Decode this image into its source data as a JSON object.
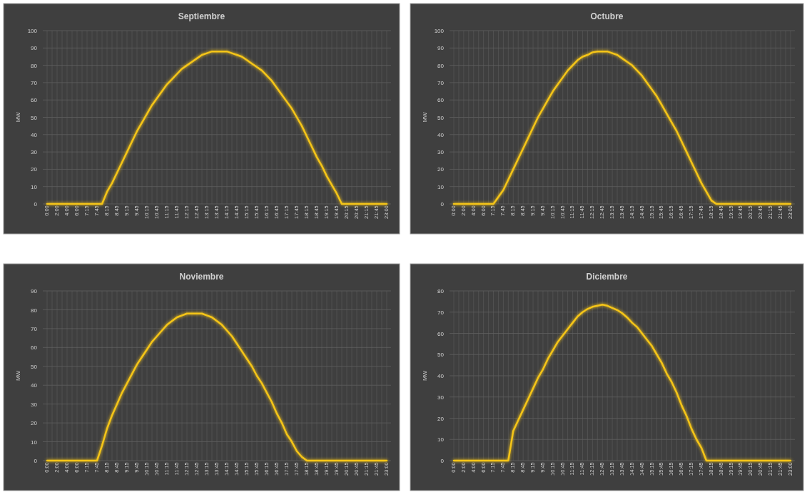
{
  "chart_data": [
    {
      "type": "line",
      "title": "Septiembre",
      "ylabel": "MW",
      "ylim": [
        0,
        100
      ],
      "yticks": [
        0,
        10,
        20,
        30,
        40,
        50,
        60,
        70,
        80,
        90,
        100
      ],
      "grid": true,
      "categories": [
        "0:00",
        null,
        "2:00",
        null,
        "4:00",
        null,
        "6:00",
        null,
        "7:15",
        null,
        "7:45",
        null,
        "8:15",
        null,
        "8:45",
        null,
        "9:15",
        null,
        "9:45",
        null,
        "10:15",
        null,
        "10:45",
        null,
        "11:15",
        null,
        "11:45",
        null,
        "12:15",
        null,
        "12:45",
        null,
        "13:15",
        null,
        "13:45",
        null,
        "14:15",
        null,
        "14:45",
        null,
        "15:15",
        null,
        "15:45",
        null,
        "16:15",
        null,
        "16:45",
        null,
        "17:15",
        null,
        "17:45",
        null,
        "18:15",
        null,
        "18:45",
        null,
        "19:15",
        null,
        "19:45",
        null,
        "20:15",
        null,
        "20:45",
        null,
        "21:15",
        null,
        "21:45",
        null,
        "23:00"
      ],
      "series": [
        {
          "color": "#f5c518",
          "values": [
            0,
            0,
            0,
            0,
            0,
            0,
            0,
            0,
            0,
            0,
            0,
            0,
            7,
            12,
            18,
            24,
            30,
            36,
            42,
            47,
            52,
            57,
            61,
            65,
            69,
            72,
            75,
            78,
            80,
            82,
            84,
            86,
            87,
            88,
            88,
            88,
            88,
            87,
            86,
            85,
            83,
            81,
            79,
            77,
            74,
            71,
            67,
            63,
            59,
            55,
            50,
            45,
            39,
            33,
            27,
            22,
            16,
            11,
            6,
            0,
            0,
            0,
            0,
            0,
            0,
            0,
            0,
            0,
            0
          ]
        }
      ]
    },
    {
      "type": "line",
      "title": "Octubre",
      "ylabel": "MW",
      "ylim": [
        0,
        100
      ],
      "yticks": [
        0,
        10,
        20,
        30,
        40,
        50,
        60,
        70,
        80,
        90,
        100
      ],
      "grid": true,
      "categories": [
        "0:00",
        null,
        "2:00",
        null,
        "4:00",
        null,
        "6:00",
        null,
        "7:15",
        null,
        "7:45",
        null,
        "8:15",
        null,
        "8:45",
        null,
        "9:15",
        null,
        "9:45",
        null,
        "10:15",
        null,
        "10:45",
        null,
        "11:15",
        null,
        "11:45",
        null,
        "12:15",
        null,
        "12:45",
        null,
        "13:15",
        null,
        "13:45",
        null,
        "14:15",
        null,
        "14:45",
        null,
        "15:15",
        null,
        "15:45",
        null,
        "16:15",
        null,
        "16:45",
        null,
        "17:15",
        null,
        "17:45",
        null,
        "18:15",
        null,
        "18:45",
        null,
        "19:15",
        null,
        "19:45",
        null,
        "20:15",
        null,
        "20:45",
        null,
        "21:15",
        null,
        "21:45",
        null,
        "23:00"
      ],
      "series": [
        {
          "color": "#f5c518",
          "values": [
            0,
            0,
            0,
            0,
            0,
            0,
            0,
            0,
            0,
            4,
            8,
            14,
            20,
            26,
            32,
            38,
            44,
            50,
            55,
            60,
            65,
            69,
            73,
            77,
            80,
            83,
            85,
            86,
            87.5,
            88,
            88,
            88,
            87,
            86,
            84,
            82,
            80,
            77,
            74,
            70,
            66,
            62,
            57,
            52,
            47,
            42,
            36,
            30,
            24,
            18,
            12,
            7,
            2,
            0,
            0,
            0,
            0,
            0,
            0,
            0,
            0,
            0,
            0,
            0,
            0,
            0,
            0,
            0,
            0
          ]
        }
      ]
    },
    {
      "type": "line",
      "title": "Noviembre",
      "ylabel": "MW",
      "ylim": [
        0,
        90
      ],
      "yticks": [
        0,
        10,
        20,
        30,
        40,
        50,
        60,
        70,
        80,
        90
      ],
      "grid": true,
      "categories": [
        "0:00",
        null,
        "2:00",
        null,
        "4:00",
        null,
        "6:00",
        null,
        "7:15",
        null,
        "7:45",
        null,
        "8:15",
        null,
        "8:45",
        null,
        "9:15",
        null,
        "9:45",
        null,
        "10:15",
        null,
        "10:45",
        null,
        "11:15",
        null,
        "11:45",
        null,
        "12:15",
        null,
        "12:45",
        null,
        "13:15",
        null,
        "13:45",
        null,
        "14:15",
        null,
        "14:45",
        null,
        "15:15",
        null,
        "15:45",
        null,
        "16:15",
        null,
        "16:45",
        null,
        "17:15",
        null,
        "17:45",
        null,
        "18:15",
        null,
        "18:45",
        null,
        "19:15",
        null,
        "19:45",
        null,
        "20:15",
        null,
        "20:45",
        null,
        "21:15",
        null,
        "21:45",
        null,
        "23:00"
      ],
      "series": [
        {
          "color": "#f5c518",
          "values": [
            0,
            0,
            0,
            0,
            0,
            0,
            0,
            0,
            0,
            0,
            0,
            8,
            17,
            24,
            30,
            36,
            41,
            46,
            51,
            55,
            59,
            63,
            66,
            69,
            72,
            74,
            76,
            77,
            78,
            78,
            78,
            78,
            77,
            76,
            74,
            72,
            69,
            66,
            62,
            58,
            54,
            50,
            45,
            41,
            36,
            31,
            25,
            20,
            14,
            10,
            5,
            2,
            0,
            0,
            0,
            0,
            0,
            0,
            0,
            0,
            0,
            0,
            0,
            0,
            0,
            0,
            0,
            0,
            0
          ]
        }
      ]
    },
    {
      "type": "line",
      "title": "Diciembre",
      "ylabel": "MW",
      "ylim": [
        0,
        80
      ],
      "yticks": [
        0,
        10,
        20,
        30,
        40,
        50,
        60,
        70,
        80
      ],
      "grid": true,
      "categories": [
        "0:00",
        null,
        "2:00",
        null,
        "4:00",
        null,
        "6:00",
        null,
        "7:15",
        null,
        "7:45",
        null,
        "8:15",
        null,
        "8:45",
        null,
        "9:15",
        null,
        "9:45",
        null,
        "10:15",
        null,
        "10:45",
        null,
        "11:15",
        null,
        "11:45",
        null,
        "12:15",
        null,
        "12:45",
        null,
        "13:15",
        null,
        "13:45",
        null,
        "14:15",
        null,
        "14:45",
        null,
        "15:15",
        null,
        "15:45",
        null,
        "16:15",
        null,
        "16:45",
        null,
        "17:15",
        null,
        "17:45",
        null,
        "18:15",
        null,
        "18:45",
        null,
        "19:15",
        null,
        "19:45",
        null,
        "20:15",
        null,
        "20:45",
        null,
        "21:15",
        null,
        "21:45",
        null,
        "23:00"
      ],
      "series": [
        {
          "color": "#f5c518",
          "values": [
            0,
            0,
            0,
            0,
            0,
            0,
            0,
            0,
            0,
            0,
            0,
            0,
            14,
            19,
            24,
            29,
            34,
            39,
            43,
            48,
            52,
            56,
            59,
            62,
            65,
            68,
            70,
            71.5,
            72.5,
            73,
            73.5,
            73,
            72,
            71,
            69.5,
            67.5,
            65,
            63,
            60,
            57,
            54,
            50,
            46,
            41,
            37,
            32,
            26,
            21,
            15,
            10,
            6,
            0,
            0,
            0,
            0,
            0,
            0,
            0,
            0,
            0,
            0,
            0,
            0,
            0,
            0,
            0,
            0,
            0,
            0
          ]
        }
      ]
    }
  ]
}
